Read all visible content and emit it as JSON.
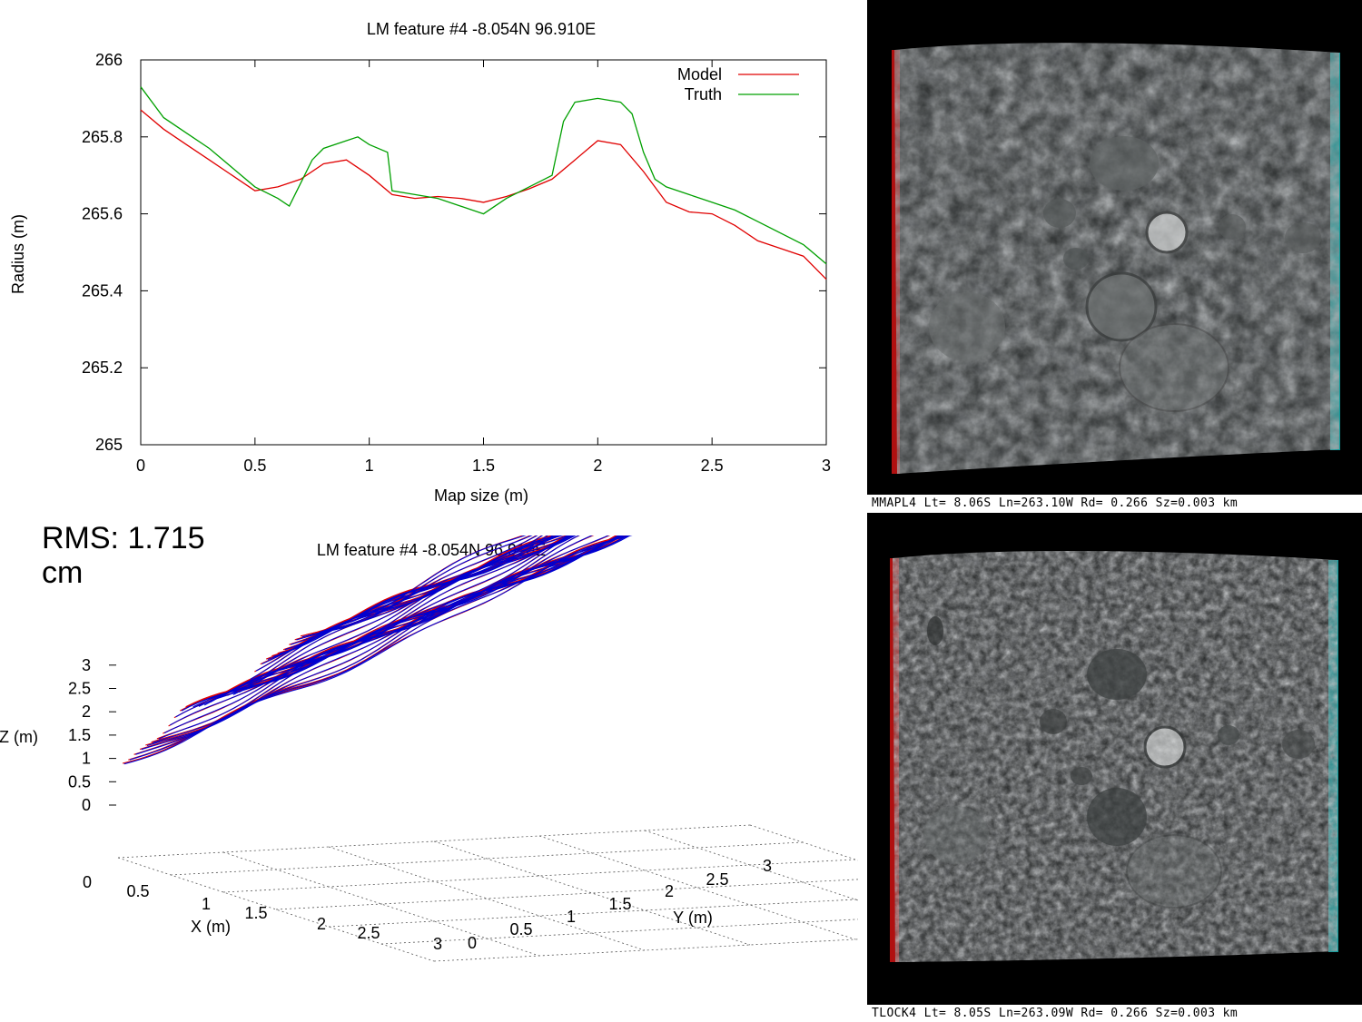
{
  "chart_data": [
    {
      "type": "line",
      "title": "LM feature #4 -8.054N 96.910E",
      "xlabel": "Map size (m)",
      "ylabel": "Radius (m)",
      "xlim": [
        0,
        3
      ],
      "ylim": [
        265,
        266
      ],
      "xticks": [
        "0",
        "0.5",
        "1",
        "1.5",
        "2",
        "2.5",
        "3"
      ],
      "yticks": [
        "265",
        "265.2",
        "265.4",
        "265.6",
        "265.8",
        "266"
      ],
      "legend": "top-right",
      "grid": false,
      "series": [
        {
          "name": "Model",
          "color": "#e00000",
          "x": [
            0,
            0.1,
            0.2,
            0.3,
            0.4,
            0.5,
            0.6,
            0.7,
            0.8,
            0.9,
            1.0,
            1.1,
            1.2,
            1.3,
            1.4,
            1.5,
            1.6,
            1.7,
            1.8,
            1.9,
            2.0,
            2.1,
            2.2,
            2.3,
            2.4,
            2.5,
            2.6,
            2.7,
            2.8,
            2.9,
            3.0
          ],
          "y": [
            265.87,
            265.82,
            265.78,
            265.74,
            265.7,
            265.66,
            265.67,
            265.69,
            265.73,
            265.74,
            265.7,
            265.65,
            265.64,
            265.645,
            265.64,
            265.63,
            265.645,
            265.665,
            265.69,
            265.74,
            265.79,
            265.78,
            265.71,
            265.63,
            265.605,
            265.6,
            265.57,
            265.53,
            265.51,
            265.49,
            265.43
          ]
        },
        {
          "name": "Truth",
          "color": "#00a000",
          "x": [
            0,
            0.1,
            0.2,
            0.3,
            0.4,
            0.5,
            0.6,
            0.65,
            0.7,
            0.75,
            0.8,
            0.9,
            0.95,
            1.0,
            1.08,
            1.1,
            1.2,
            1.3,
            1.4,
            1.5,
            1.6,
            1.7,
            1.8,
            1.85,
            1.9,
            2.0,
            2.1,
            2.15,
            2.2,
            2.25,
            2.3,
            2.4,
            2.5,
            2.6,
            2.7,
            2.8,
            2.9,
            3.0
          ],
          "y": [
            265.93,
            265.85,
            265.81,
            265.77,
            265.72,
            265.67,
            265.64,
            265.62,
            265.68,
            265.74,
            265.77,
            265.79,
            265.8,
            265.78,
            265.76,
            265.66,
            265.65,
            265.64,
            265.62,
            265.6,
            265.64,
            265.67,
            265.7,
            265.84,
            265.89,
            265.9,
            265.89,
            265.86,
            265.76,
            265.69,
            265.67,
            265.65,
            265.63,
            265.61,
            265.58,
            265.55,
            265.52,
            265.47
          ]
        }
      ]
    },
    {
      "type": "surface",
      "title": "LM feature #4 -8.054N 96.910E",
      "xlabel": "X (m)",
      "ylabel": "Y (m)",
      "zlabel": "Z (m)",
      "xticks": [
        "0.5",
        "1",
        "1.5",
        "2",
        "2.5",
        "3"
      ],
      "yticks": [
        "0",
        "0.5",
        "1",
        "1.5",
        "2",
        "2.5",
        "3"
      ],
      "zticks": [
        "0",
        "0.5",
        "1",
        "1.5",
        "2",
        "2.5",
        "3"
      ],
      "origin_label": "0",
      "series": [
        {
          "name": "Model",
          "color": "#e00000"
        },
        {
          "name": "Truth",
          "color": "#0000d0"
        }
      ]
    }
  ],
  "rms_text": "RMS: 1.715 cm",
  "images": [
    {
      "caption": "MMAPL4 Lt= 8.06S Ln=263.10W Rd= 0.266 Sz=0.003 km"
    },
    {
      "caption": "TLOCK4 Lt= 8.05S Ln=263.09W Rd= 0.266 Sz=0.003 km"
    }
  ]
}
